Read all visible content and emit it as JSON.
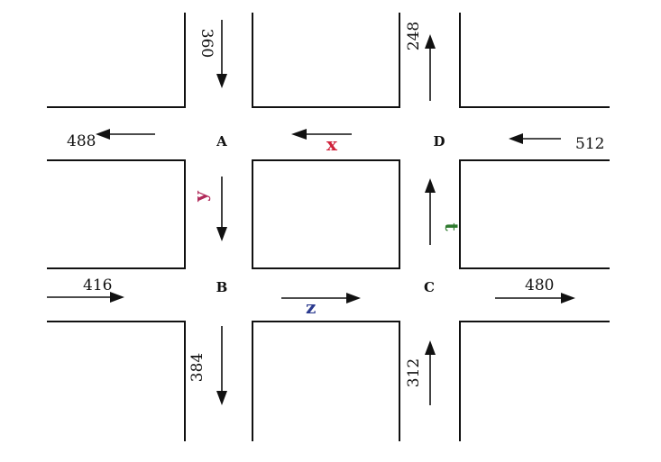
{
  "nodes": {
    "A": "A",
    "B": "B",
    "C": "C",
    "D": "D"
  },
  "flows": {
    "north_a_in": "360",
    "west_a_out": "488",
    "north_d_out": "248",
    "east_d_in": "512",
    "west_b_in": "416",
    "south_b_out": "384",
    "south_c_in": "312",
    "east_c_out": "480"
  },
  "unknowns": {
    "x": "x",
    "y": "y",
    "z": "z",
    "t": "t"
  },
  "colors": {
    "x": "#d0213a",
    "y": "#b02a5a",
    "z": "#2b3a8f",
    "t": "#2e7a2e"
  }
}
